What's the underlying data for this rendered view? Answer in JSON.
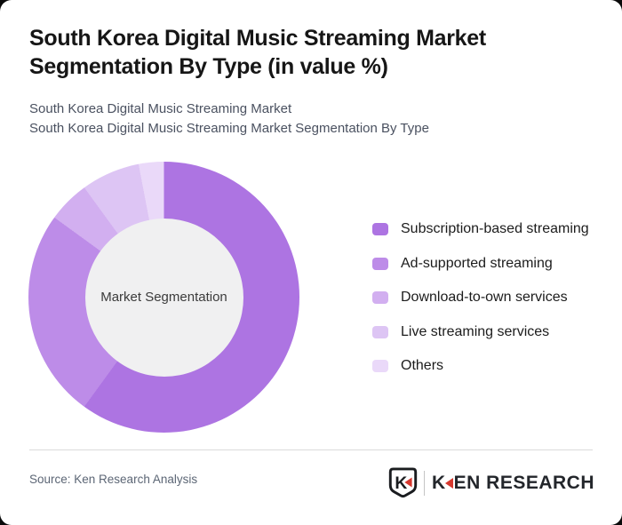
{
  "page": {
    "background": "#0a0a0a",
    "card_background": "#ffffff"
  },
  "header": {
    "title_lines": [
      "South Korea Digital Music Streaming Market",
      "Segmentation By Type (in value %)"
    ],
    "subtitle_lines": [
      "South Korea Digital Music Streaming Market",
      "South Korea Digital Music Streaming Market Segmentation By Type"
    ]
  },
  "chart_data": {
    "type": "pie",
    "subtype": "donut",
    "title": "South Korea Digital Music Streaming Market Segmentation By Type (in value %)",
    "center_label": "Market Segmentation",
    "unit": "value %",
    "start_angle_deg": 0,
    "direction": "clockwise",
    "legend_position": "right",
    "hole_color": "#f0f0f1",
    "series": [
      {
        "name": "Subscription-based streaming",
        "value": 60,
        "color": "#ad74e2"
      },
      {
        "name": "Ad-supported streaming",
        "value": 25,
        "color": "#bd8ce8"
      },
      {
        "name": "Download-to-own services",
        "value": 5,
        "color": "#d2aff0"
      },
      {
        "name": "Live streaming services",
        "value": 7,
        "color": "#ddc5f4"
      },
      {
        "name": "Others",
        "value": 3,
        "color": "#ead9f9"
      }
    ]
  },
  "footer": {
    "source": "Source: Ken Research Analysis",
    "logo": {
      "badge_letter": "K",
      "wordmark_first": "K",
      "wordmark_rest": "EN RESEARCH",
      "accent_color": "#d6382e",
      "ink_color": "#1a1c1f"
    }
  }
}
